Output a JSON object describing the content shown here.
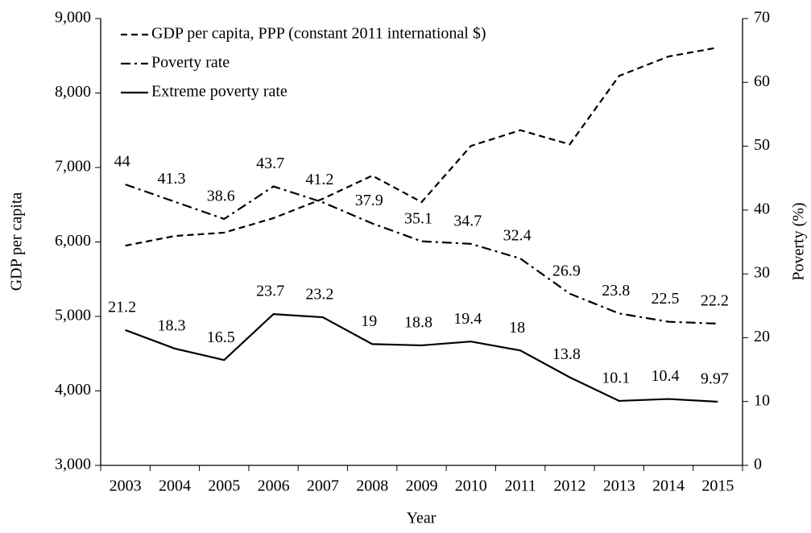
{
  "chart_data": {
    "type": "line",
    "x_label": "Year",
    "y_label": "GDP per capita",
    "y2_label": "Poverty (%)",
    "categories": [
      "2003",
      "2004",
      "2005",
      "2006",
      "2007",
      "2008",
      "2009",
      "2010",
      "2011",
      "2012",
      "2013",
      "2014",
      "2015"
    ],
    "series": [
      {
        "name": "GDP per capita, PPP (constant 2011 international $)",
        "color": "#000000",
        "dash": "dashed",
        "axis": "y",
        "values": [
          5950,
          6080,
          6125,
          6320,
          6580,
          6890,
          6535,
          7290,
          7500,
          7310,
          8230,
          8490,
          8610
        ]
      },
      {
        "name": "Poverty rate",
        "color": "#000000",
        "dash": "dashdot",
        "axis": "y2",
        "labels": true,
        "values": [
          44,
          41.3,
          38.6,
          43.7,
          41.2,
          37.9,
          35.1,
          34.7,
          32.4,
          26.9,
          23.8,
          22.5,
          22.2
        ]
      },
      {
        "name": "Extreme poverty rate",
        "color": "#000000",
        "dash": "solid",
        "axis": "y2",
        "labels": true,
        "values": [
          21.2,
          18.3,
          16.5,
          23.7,
          23.2,
          19,
          18.8,
          19.4,
          18,
          13.8,
          10.1,
          10.4,
          9.97
        ]
      }
    ],
    "ylim": [
      3000,
      9000
    ],
    "yticks": [
      {
        "value": 3000,
        "label": "3,000"
      },
      {
        "value": 4000,
        "label": "4,000"
      },
      {
        "value": 5000,
        "label": "5,000"
      },
      {
        "value": 6000,
        "label": "6,000"
      },
      {
        "value": 7000,
        "label": "7,000"
      },
      {
        "value": 8000,
        "label": "8,000"
      },
      {
        "value": 9000,
        "label": "9,000"
      }
    ],
    "y2lim": [
      0,
      70
    ],
    "y2ticks": [
      0,
      10,
      20,
      30,
      40,
      50,
      60,
      70
    ],
    "legend": "upper left",
    "grid": false
  }
}
